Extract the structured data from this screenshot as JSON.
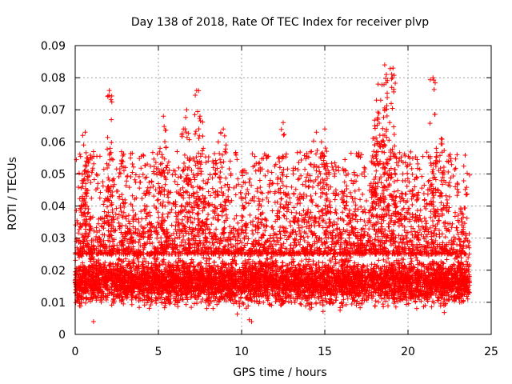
{
  "chart_data": {
    "type": "scatter",
    "title": "Day 138 of 2018, Rate Of TEC Index for receiver plvp",
    "xlabel": "GPS time / hours",
    "ylabel": "ROTI / TECUs",
    "xlim": [
      0,
      25
    ],
    "ylim": [
      0,
      0.09
    ],
    "x_ticks": [
      0,
      5,
      10,
      15,
      20,
      25
    ],
    "x_tick_labels": [
      "0",
      "5",
      "10",
      "15",
      "20",
      "25"
    ],
    "y_ticks": [
      0,
      0.01,
      0.02,
      0.03,
      0.04,
      0.05,
      0.06,
      0.07,
      0.08,
      0.09
    ],
    "y_tick_labels": [
      "0",
      "0.01",
      "0.02",
      "0.03",
      "0.04",
      "0.05",
      "0.06",
      "0.07",
      "0.08",
      "0.09"
    ],
    "grid": true,
    "marker": "+",
    "series": [
      {
        "name": "ROTI",
        "color": "#ff0000",
        "x_range": [
          0.0,
          23.7
        ],
        "typical_range": [
          0.008,
          0.025
        ],
        "points": [
          [
            0.1,
            0.014
          ],
          [
            0.2,
            0.012
          ],
          [
            0.3,
            0.025
          ],
          [
            0.4,
            0.031
          ],
          [
            0.5,
            0.048
          ],
          [
            0.6,
            0.063
          ],
          [
            0.7,
            0.044
          ],
          [
            0.75,
            0.055
          ],
          [
            0.8,
            0.038
          ],
          [
            0.9,
            0.021
          ],
          [
            1.0,
            0.018
          ],
          [
            1.1,
            0.004
          ],
          [
            1.2,
            0.012
          ],
          [
            1.4,
            0.026
          ],
          [
            1.6,
            0.036
          ],
          [
            1.8,
            0.028
          ],
          [
            2.0,
            0.045
          ],
          [
            2.05,
            0.076
          ],
          [
            2.1,
            0.058
          ],
          [
            2.2,
            0.033
          ],
          [
            2.4,
            0.019
          ],
          [
            2.6,
            0.022
          ],
          [
            2.8,
            0.054
          ],
          [
            3.0,
            0.041
          ],
          [
            3.2,
            0.027
          ],
          [
            3.5,
            0.017
          ],
          [
            3.8,
            0.024
          ],
          [
            4.0,
            0.036
          ],
          [
            4.3,
            0.049
          ],
          [
            4.6,
            0.032
          ],
          [
            4.9,
            0.021
          ],
          [
            5.1,
            0.058
          ],
          [
            5.3,
            0.068
          ],
          [
            5.5,
            0.052
          ],
          [
            5.7,
            0.038
          ],
          [
            6.0,
            0.028
          ],
          [
            6.2,
            0.049
          ],
          [
            6.5,
            0.064
          ],
          [
            6.7,
            0.07
          ],
          [
            6.9,
            0.055
          ],
          [
            7.1,
            0.044
          ],
          [
            7.3,
            0.076
          ],
          [
            7.5,
            0.068
          ],
          [
            7.7,
            0.058
          ],
          [
            8.0,
            0.041
          ],
          [
            8.3,
            0.052
          ],
          [
            8.6,
            0.06
          ],
          [
            8.9,
            0.064
          ],
          [
            9.2,
            0.045
          ],
          [
            9.5,
            0.033
          ],
          [
            9.8,
            0.026
          ],
          [
            10.1,
            0.051
          ],
          [
            10.3,
            0.022
          ],
          [
            10.6,
            0.004
          ],
          [
            10.9,
            0.018
          ],
          [
            11.1,
            0.048
          ],
          [
            11.4,
            0.036
          ],
          [
            11.7,
            0.029
          ],
          [
            12.0,
            0.044
          ],
          [
            12.3,
            0.052
          ],
          [
            12.5,
            0.066
          ],
          [
            12.7,
            0.046
          ],
          [
            13.0,
            0.038
          ],
          [
            13.3,
            0.031
          ],
          [
            13.6,
            0.043
          ],
          [
            13.9,
            0.049
          ],
          [
            14.2,
            0.057
          ],
          [
            14.5,
            0.063
          ],
          [
            14.8,
            0.06
          ],
          [
            15.0,
            0.064
          ],
          [
            15.2,
            0.051
          ],
          [
            15.5,
            0.044
          ],
          [
            15.8,
            0.036
          ],
          [
            16.1,
            0.041
          ],
          [
            16.4,
            0.05
          ],
          [
            16.7,
            0.047
          ],
          [
            17.0,
            0.039
          ],
          [
            17.3,
            0.033
          ],
          [
            17.6,
            0.029
          ],
          [
            17.9,
            0.055
          ],
          [
            18.0,
            0.065
          ],
          [
            18.1,
            0.073
          ],
          [
            18.2,
            0.078
          ],
          [
            18.4,
            0.06
          ],
          [
            18.6,
            0.084
          ],
          [
            18.7,
            0.081
          ],
          [
            18.9,
            0.066
          ],
          [
            19.1,
            0.083
          ],
          [
            19.3,
            0.055
          ],
          [
            19.6,
            0.044
          ],
          [
            19.9,
            0.038
          ],
          [
            20.1,
            0.055
          ],
          [
            20.4,
            0.046
          ],
          [
            20.7,
            0.037
          ],
          [
            21.0,
            0.042
          ],
          [
            21.3,
            0.048
          ],
          [
            21.5,
            0.08
          ],
          [
            21.7,
            0.058
          ],
          [
            22.0,
            0.061
          ],
          [
            22.3,
            0.033
          ],
          [
            22.6,
            0.028
          ],
          [
            22.9,
            0.024
          ],
          [
            23.2,
            0.036
          ],
          [
            23.5,
            0.03
          ],
          [
            23.7,
            0.013
          ]
        ]
      }
    ]
  }
}
